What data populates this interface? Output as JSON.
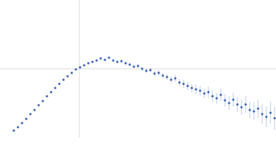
{
  "chart_data": {
    "type": "scatter",
    "x": [
      20,
      26,
      32,
      38,
      44,
      50,
      56,
      62,
      68,
      74,
      80,
      86,
      92,
      98,
      104,
      110,
      116,
      122,
      128,
      134,
      140,
      146,
      152,
      158,
      164,
      170,
      176,
      182,
      188,
      194,
      200,
      206,
      212,
      218,
      224,
      230,
      236,
      242,
      248,
      254,
      260,
      266,
      272,
      278,
      284,
      290,
      296,
      302,
      308,
      314,
      320,
      326,
      332,
      338,
      344,
      350,
      356,
      362,
      368,
      374,
      380,
      386,
      392,
      398
    ],
    "values": [
      10,
      15,
      21,
      27,
      34,
      40,
      47,
      53,
      60,
      66,
      72,
      78,
      84,
      89,
      94,
      99,
      102,
      105,
      108,
      110,
      112,
      115,
      113,
      116,
      112,
      110,
      111,
      108,
      106,
      103,
      104,
      100,
      97,
      98,
      93,
      94,
      90,
      88,
      84,
      86,
      80,
      78,
      75,
      72,
      70,
      68,
      64,
      66,
      60,
      57,
      62,
      54,
      50,
      55,
      48,
      44,
      48,
      40,
      38,
      42,
      34,
      30,
      36,
      28
    ],
    "errors": [
      1,
      1,
      1,
      1,
      1,
      1,
      1,
      1,
      1,
      1,
      1,
      1,
      1,
      1,
      1,
      1,
      1,
      1,
      1,
      1,
      1,
      1,
      1,
      1,
      1,
      1,
      2,
      2,
      2,
      2,
      3,
      3,
      3,
      3,
      4,
      4,
      4,
      4,
      5,
      5,
      5,
      6,
      6,
      6,
      7,
      7,
      7,
      8,
      8,
      8,
      9,
      9,
      10,
      10,
      11,
      11,
      12,
      12,
      13,
      13,
      14,
      15,
      16,
      17
    ],
    "color": "#3a64b8",
    "xlim": [
      0,
      400
    ],
    "ylim": [
      0,
      200
    ],
    "xticks": [
      115
    ],
    "yticks": [
      100
    ],
    "grid": true
  }
}
